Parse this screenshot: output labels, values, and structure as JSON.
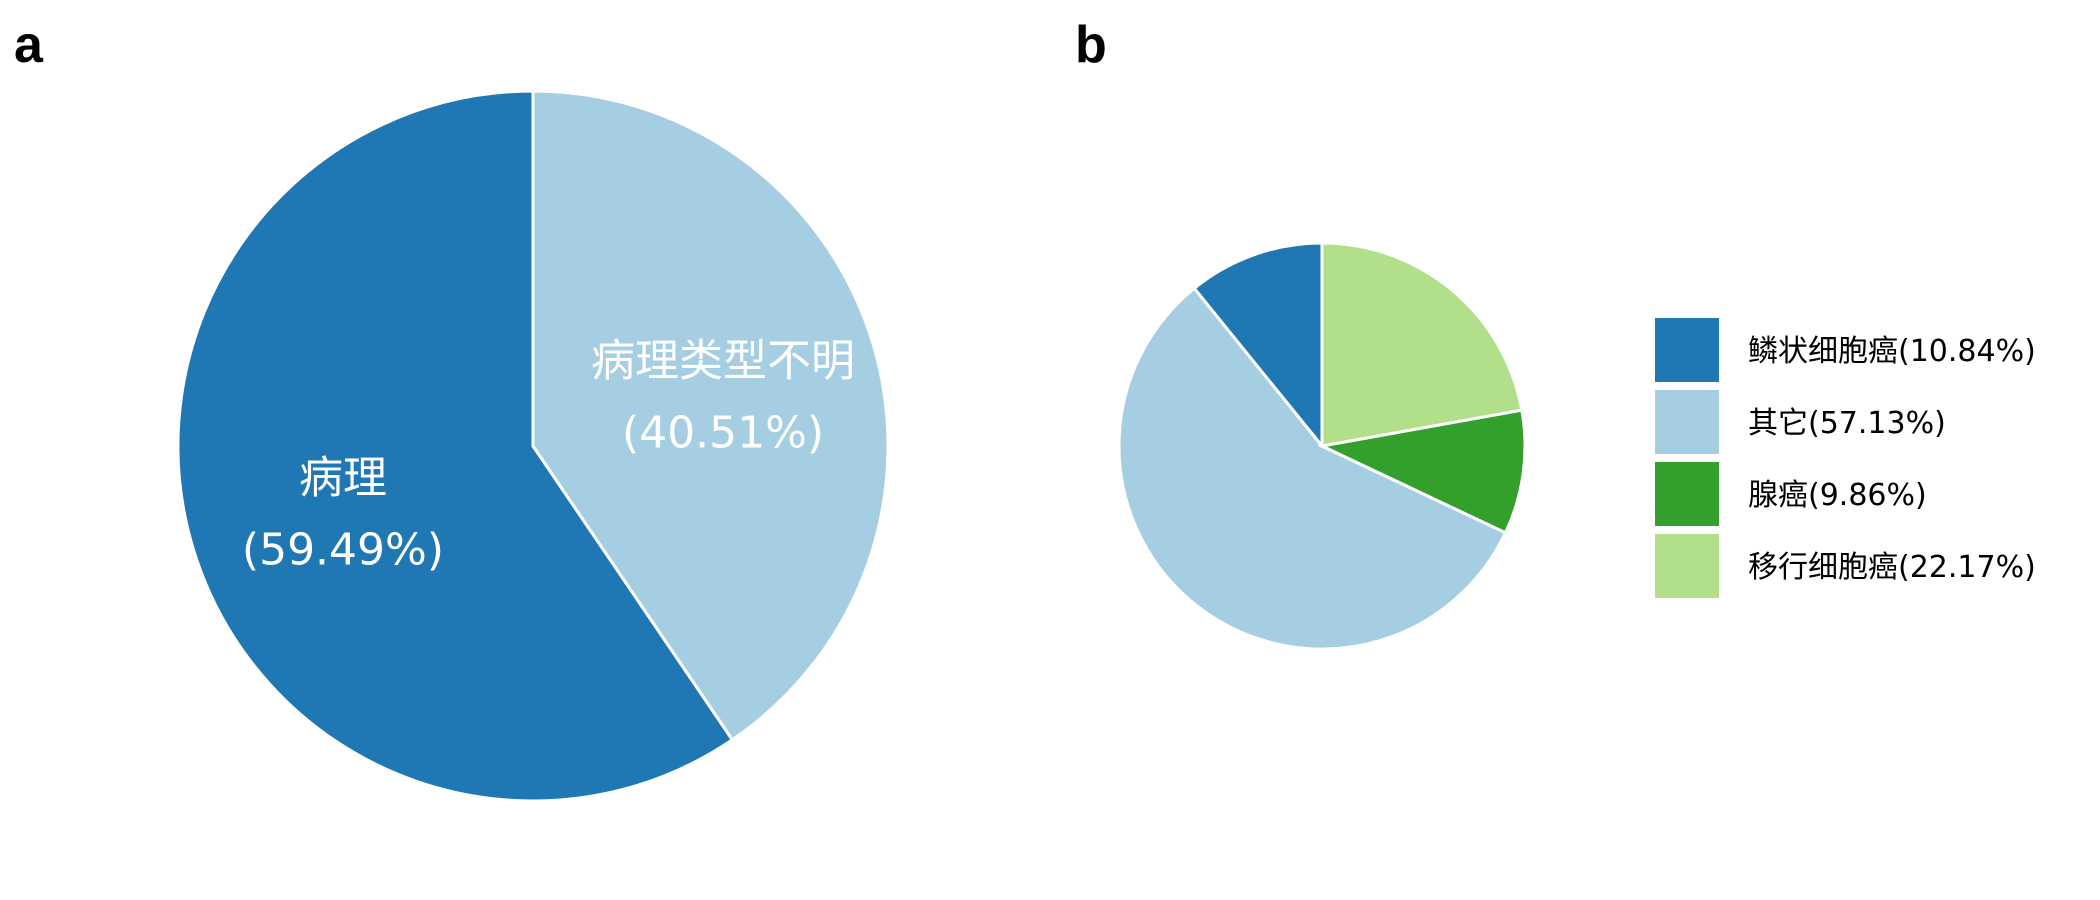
{
  "panels": {
    "a": "a",
    "b": "b"
  },
  "chart_data": [
    {
      "type": "pie",
      "panel": "a",
      "labels": [
        "病理",
        "病理类型不明"
      ],
      "values": [
        59.49,
        40.51
      ],
      "percent_labels": [
        "(59.49%)",
        "(40.51%)"
      ],
      "colors": [
        "#1F78B4",
        "#A6CEE3"
      ],
      "start_angle_deg": 0,
      "direction": "counterclockwise",
      "legend": "none"
    },
    {
      "type": "pie",
      "panel": "b",
      "labels": [
        "鳞状细胞癌",
        "其它",
        "腺癌",
        "移行细胞癌"
      ],
      "values": [
        10.84,
        57.13,
        9.86,
        22.17
      ],
      "colors": [
        "#1F78B4",
        "#A6CEE3",
        "#33A02C",
        "#B2DF8A"
      ],
      "start_angle_deg": 0,
      "direction": "counterclockwise",
      "legend": "right",
      "legend_entries": [
        "鳞状细胞癌(10.84%)",
        "其它(57.13%)",
        "腺癌(9.86%)",
        "移行细胞癌(22.17%)"
      ]
    }
  ]
}
